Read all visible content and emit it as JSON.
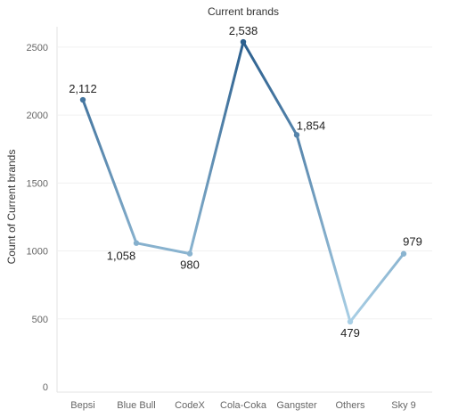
{
  "chart_data": {
    "type": "line",
    "title": "Current brands",
    "xlabel": "",
    "ylabel": "Count of Current brands",
    "categories": [
      "Bepsi",
      "Blue Bull",
      "CodeX",
      "Cola-Coka",
      "Gangster",
      "Others",
      "Sky 9"
    ],
    "values": [
      2112,
      1058,
      980,
      2538,
      1854,
      479,
      979
    ],
    "value_labels": [
      "2,112",
      "1,058",
      "980",
      "2,538",
      "1,854",
      "479",
      "979"
    ],
    "ylim": [
      0,
      2650
    ],
    "yticks": [
      0,
      500,
      1000,
      1500,
      2000,
      2500
    ],
    "grid": true,
    "legend": "none",
    "color_scale": {
      "low": "#a9cfe5",
      "high": "#2b5f8e"
    }
  }
}
